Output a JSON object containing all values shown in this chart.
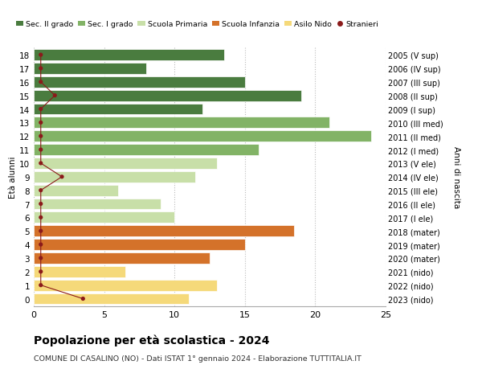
{
  "ages": [
    18,
    17,
    16,
    15,
    14,
    13,
    12,
    11,
    10,
    9,
    8,
    7,
    6,
    5,
    4,
    3,
    2,
    1,
    0
  ],
  "values": [
    13.5,
    8,
    15,
    19,
    12,
    21,
    24,
    16,
    13,
    11.5,
    6,
    9,
    10,
    18.5,
    15,
    12.5,
    6.5,
    13,
    11
  ],
  "stranieri": [
    0.5,
    0.5,
    0.5,
    1.5,
    0.5,
    0.5,
    0.5,
    0.5,
    0.5,
    2,
    0.5,
    0.5,
    0.5,
    0.5,
    0.5,
    0.5,
    0.5,
    0.5,
    3.5
  ],
  "right_labels": [
    "2005 (V sup)",
    "2006 (IV sup)",
    "2007 (III sup)",
    "2008 (II sup)",
    "2009 (I sup)",
    "2010 (III med)",
    "2011 (II med)",
    "2012 (I med)",
    "2013 (V ele)",
    "2014 (IV ele)",
    "2015 (III ele)",
    "2016 (II ele)",
    "2017 (I ele)",
    "2018 (mater)",
    "2019 (mater)",
    "2020 (mater)",
    "2021 (nido)",
    "2022 (nido)",
    "2023 (nido)"
  ],
  "bar_colors": [
    "#4a7c3f",
    "#4a7c3f",
    "#4a7c3f",
    "#4a7c3f",
    "#4a7c3f",
    "#82b366",
    "#82b366",
    "#82b366",
    "#c8dfa8",
    "#c8dfa8",
    "#c8dfa8",
    "#c8dfa8",
    "#c8dfa8",
    "#d4722a",
    "#d4722a",
    "#d4722a",
    "#f5d97a",
    "#f5d97a",
    "#f5d97a"
  ],
  "legend_labels": [
    "Sec. II grado",
    "Sec. I grado",
    "Scuola Primaria",
    "Scuola Infanzia",
    "Asilo Nido",
    "Stranieri"
  ],
  "legend_colors": [
    "#4a7c3f",
    "#82b366",
    "#c8dfa8",
    "#d4722a",
    "#f5d97a",
    "#a02020"
  ],
  "title": "Popolazione per età scolastica - 2024",
  "subtitle": "COMUNE DI CASALINO (NO) - Dati ISTAT 1° gennaio 2024 - Elaborazione TUTTITALIA.IT",
  "ylabel_left": "Età alunni",
  "ylabel_right": "Anni di nascita",
  "xlim": [
    0,
    25
  ],
  "stranieri_color": "#8b1a1a",
  "bg_color": "#ffffff",
  "grid_color": "#bbbbbb"
}
